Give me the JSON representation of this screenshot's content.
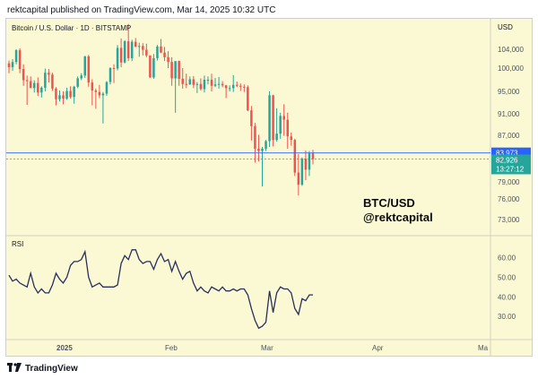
{
  "header": {
    "text": "rektcapital published on TradingView.com, Mar 14, 2025 10:32 UTC"
  },
  "footer": {
    "logo_icon": "tradingview-logo-icon",
    "brand": "TradingView"
  },
  "colors": {
    "bull": "#26a69a",
    "bear": "#ef5350",
    "rsi_line": "#2a2e5e",
    "last_price_bg": "#2962ff",
    "current_price_bg": "#26a69a",
    "background": "#fbf9d3"
  },
  "chart_data": [
    {
      "type": "candlestick",
      "title": "Bitcoin / U.S. Dollar · 1D · BITSTAMP",
      "currency": "USD",
      "watermark": [
        "BTC/USD",
        "@rektcapital"
      ],
      "y_ticks": [
        "104,000",
        "100,000",
        "95,000",
        "91,000",
        "87,000",
        "79,000",
        "76,000",
        "73,000"
      ],
      "y_tick_values": [
        104000,
        100000,
        95000,
        91000,
        87000,
        79000,
        76000,
        73000
      ],
      "price_labels": [
        {
          "text": "83,973",
          "value": 83973,
          "kind": "last"
        },
        {
          "text": "82,926",
          "value": 82926,
          "kind": "current"
        },
        {
          "text": "13:27:12",
          "kind": "countdown"
        }
      ],
      "x_ticks": [
        "2025",
        "Feb",
        "Mar",
        "Apr",
        "Ma"
      ],
      "candles_start": "2024-12-13",
      "candles": [
        [
          101000,
          101600,
          98900,
          100200
        ],
        [
          100200,
          101900,
          99400,
          101300
        ],
        [
          101300,
          104000,
          100800,
          103800
        ],
        [
          103800,
          104200,
          98900,
          99800
        ],
        [
          99800,
          100800,
          96200,
          97400
        ],
        [
          97400,
          98400,
          92600,
          97200
        ],
        [
          97200,
          98200,
          95800,
          95700
        ],
        [
          95700,
          97400,
          94800,
          96800
        ],
        [
          96800,
          98000,
          94200,
          94800
        ],
        [
          94800,
          96100,
          93900,
          95800
        ],
        [
          95800,
          99900,
          95000,
          99000
        ],
        [
          99000,
          99800,
          96900,
          98600
        ],
        [
          98600,
          99000,
          95100,
          95600
        ],
        [
          95600,
          95900,
          92500,
          93600
        ],
        [
          93600,
          95200,
          93200,
          94300
        ],
        [
          94300,
          95000,
          92700,
          93700
        ],
        [
          93700,
          95800,
          93500,
          95100
        ],
        [
          95100,
          96100,
          93700,
          94000
        ],
        [
          94000,
          96200,
          92800,
          96000
        ],
        [
          96000,
          98200,
          95700,
          97800
        ],
        [
          97800,
          98900,
          97400,
          98400
        ],
        [
          98400,
          102600,
          97900,
          102500
        ],
        [
          102500,
          102800,
          96000,
          96900
        ],
        [
          96900,
          97600,
          92500,
          95200
        ],
        [
          95200,
          95600,
          91900,
          94900
        ],
        [
          94900,
          96400,
          93800,
          94300
        ],
        [
          94300,
          94900,
          89200,
          94600
        ],
        [
          94600,
          97200,
          94200,
          97000
        ],
        [
          97000,
          100200,
          96500,
          100000
        ],
        [
          100000,
          100800,
          96800,
          99900
        ],
        [
          99900,
          104900,
          99500,
          104300
        ],
        [
          104300,
          106300,
          100200,
          101200
        ],
        [
          101200,
          105900,
          101000,
          105700
        ],
        [
          105700,
          109400,
          101500,
          102100
        ],
        [
          102100,
          106000,
          101500,
          105600
        ],
        [
          105600,
          106400,
          104500,
          104500
        ],
        [
          104500,
          105400,
          102400,
          104700
        ],
        [
          104700,
          105300,
          102700,
          103900
        ],
        [
          103900,
          105200,
          102300,
          102700
        ],
        [
          102700,
          102700,
          97900,
          98000
        ],
        [
          98000,
          103000,
          97700,
          102100
        ],
        [
          102100,
          104900,
          101600,
          104600
        ],
        [
          104600,
          106200,
          103200,
          103300
        ],
        [
          103300,
          104500,
          101500,
          102300
        ],
        [
          102300,
          103600,
          100000,
          101300
        ],
        [
          101300,
          102300,
          96200,
          97800
        ],
        [
          97800,
          101400,
          91200,
          101500
        ],
        [
          101500,
          101600,
          96200,
          97700
        ],
        [
          97700,
          100000,
          95600,
          96600
        ],
        [
          96600,
          98800,
          95700,
          96500
        ],
        [
          96500,
          98200,
          96400,
          97600
        ],
        [
          97600,
          98300,
          95700,
          96400
        ],
        [
          96400,
          97000,
          94700,
          96600
        ],
        [
          96600,
          97800,
          95200,
          95500
        ],
        [
          95500,
          98400,
          94800,
          97500
        ],
        [
          97500,
          98200,
          96500,
          97500
        ],
        [
          97500,
          98800,
          95000,
          96200
        ],
        [
          96200,
          97900,
          95900,
          96500
        ],
        [
          96500,
          98100,
          95600,
          96600
        ],
        [
          96600,
          97200,
          95900,
          96300
        ],
        [
          96300,
          96400,
          93800,
          95700
        ],
        [
          95700,
          96300,
          95000,
          95700
        ],
        [
          95700,
          98500,
          94900,
          96400
        ],
        [
          96400,
          97100,
          95900,
          96200
        ],
        [
          96200,
          96700,
          95100,
          96000
        ],
        [
          96000,
          96500,
          94900,
          95900
        ],
        [
          95900,
          96300,
          91500,
          91600
        ],
        [
          91600,
          92400,
          86100,
          88700
        ],
        [
          88700,
          89300,
          82300,
          84700
        ],
        [
          84700,
          87100,
          82500,
          84300
        ],
        [
          84300,
          85000,
          78200,
          84700
        ],
        [
          84700,
          86200,
          84300,
          86000
        ],
        [
          86000,
          95000,
          85000,
          94300
        ],
        [
          94300,
          94400,
          85100,
          86200
        ],
        [
          86200,
          92000,
          85900,
          87300
        ],
        [
          87300,
          91200,
          86400,
          90600
        ],
        [
          90600,
          92700,
          86900,
          89900
        ],
        [
          89900,
          91200,
          84700,
          86800
        ],
        [
          86800,
          87500,
          85200,
          86200
        ],
        [
          86200,
          86400,
          80000,
          80600
        ],
        [
          80600,
          83800,
          76600,
          78500
        ],
        [
          78500,
          83200,
          78300,
          83000
        ],
        [
          83000,
          84400,
          79300,
          81100
        ],
        [
          81100,
          84300,
          80000,
          83900
        ],
        [
          83900,
          84500,
          82000,
          82926
        ]
      ]
    },
    {
      "type": "line",
      "title": "RSI",
      "y_ticks": [
        "60.00",
        "50.00",
        "40.00",
        "30.00"
      ],
      "y_tick_values": [
        60,
        50,
        40,
        30
      ],
      "ylim": [
        20,
        68
      ],
      "values": [
        51,
        48,
        49,
        47,
        46,
        45,
        52,
        45,
        42,
        44,
        42,
        42,
        46,
        52,
        49,
        47,
        50,
        56,
        58,
        58,
        59,
        63,
        50,
        45,
        46,
        47,
        45,
        45,
        45,
        45,
        46,
        57,
        61,
        59,
        64,
        64,
        59,
        57,
        58,
        58,
        54,
        59,
        62,
        58,
        59,
        53,
        58,
        53,
        49,
        52,
        53,
        47,
        43,
        45,
        43,
        42,
        45,
        44,
        43,
        45,
        43,
        43,
        44,
        43,
        44,
        44,
        41,
        34,
        28,
        24,
        25,
        27,
        43,
        32,
        42,
        45,
        44,
        44,
        42,
        34,
        31,
        39,
        38,
        41,
        41
      ]
    }
  ]
}
